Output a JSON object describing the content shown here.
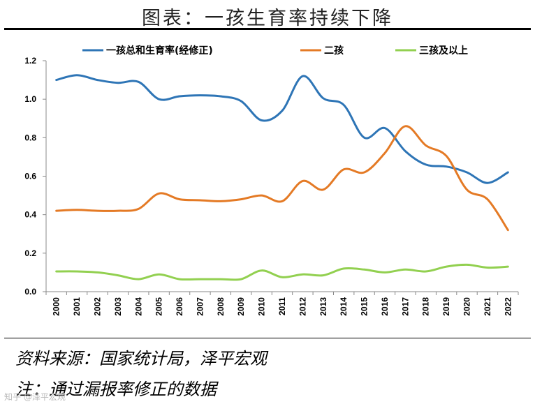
{
  "title": "图表：一孩生育率持续下降",
  "source": "资料来源：国家统计局，泽平宏观",
  "note": "注：通过漏报率修正的数据",
  "watermark": "知乎 @泽平宏观",
  "chart_data": {
    "type": "line",
    "x": [
      "2000",
      "2001",
      "2002",
      "2003",
      "2004",
      "2005",
      "2006",
      "2007",
      "2008",
      "2009",
      "2010",
      "2011",
      "2012",
      "2013",
      "2014",
      "2015",
      "2016",
      "2017",
      "2018",
      "2019",
      "2020",
      "2021",
      "2022"
    ],
    "ylim": [
      0,
      1.2
    ],
    "yticks": [
      "0.0",
      "0.2",
      "0.4",
      "0.6",
      "0.8",
      "1.0",
      "1.2"
    ],
    "legend_position": "top",
    "series": [
      {
        "name": "一孩总和生育率(经修正)",
        "color": "#2E75B6",
        "values": [
          1.1,
          1.125,
          1.1,
          1.085,
          1.09,
          1.0,
          1.015,
          1.02,
          1.015,
          0.99,
          0.89,
          0.94,
          1.12,
          1.005,
          0.97,
          0.8,
          0.85,
          0.73,
          0.66,
          0.65,
          0.62,
          0.565,
          0.62
        ]
      },
      {
        "name": "二孩",
        "color": "#E47A25",
        "values": [
          0.42,
          0.425,
          0.42,
          0.42,
          0.43,
          0.51,
          0.48,
          0.475,
          0.47,
          0.48,
          0.5,
          0.47,
          0.575,
          0.53,
          0.635,
          0.62,
          0.72,
          0.86,
          0.76,
          0.705,
          0.53,
          0.48,
          0.32
        ]
      },
      {
        "name": "三孩及以上",
        "color": "#92D050",
        "values": [
          0.105,
          0.105,
          0.1,
          0.085,
          0.065,
          0.09,
          0.065,
          0.065,
          0.065,
          0.065,
          0.11,
          0.075,
          0.09,
          0.085,
          0.12,
          0.115,
          0.1,
          0.115,
          0.105,
          0.13,
          0.14,
          0.125,
          0.13
        ]
      }
    ]
  }
}
